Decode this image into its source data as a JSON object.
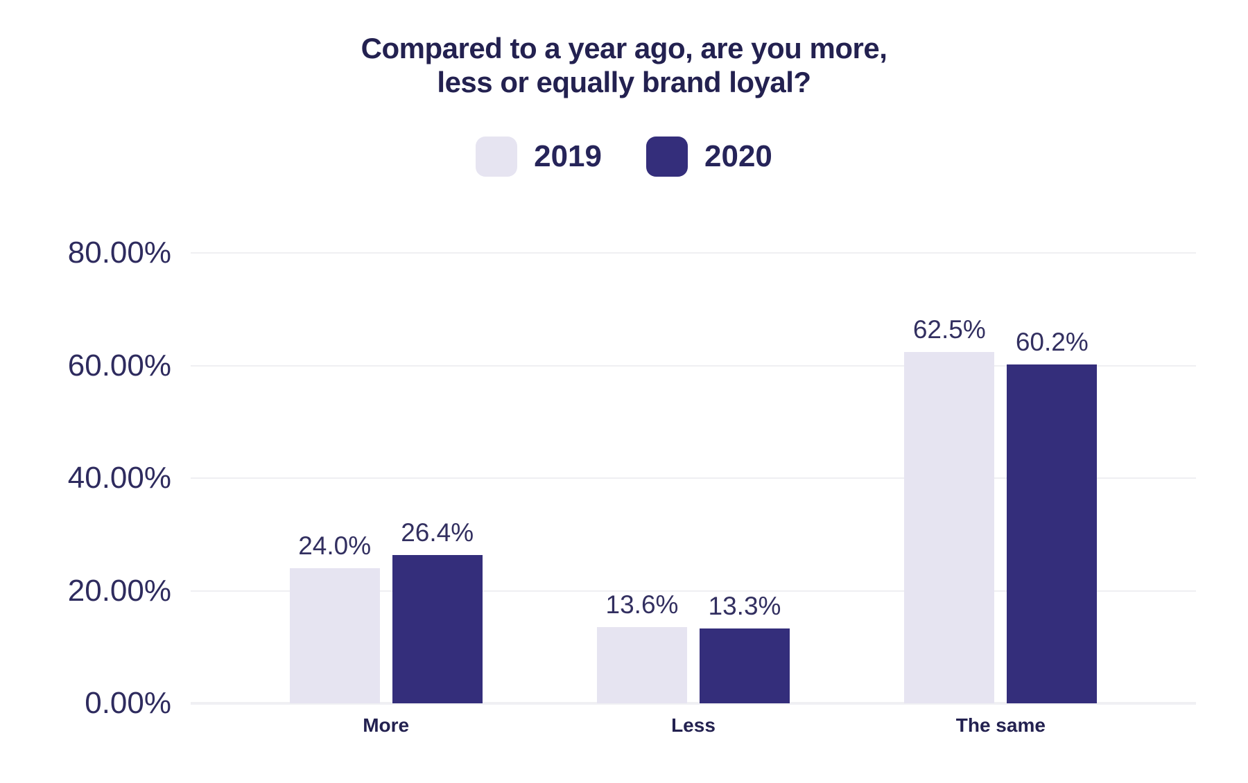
{
  "chart_data": {
    "type": "bar",
    "title_lines": [
      "Compared to a year ago, are you more,",
      "less or equally brand loyal?"
    ],
    "categories": [
      "More",
      "Less",
      "The same"
    ],
    "series": [
      {
        "name": "2019",
        "color": "#E6E4F1",
        "values": [
          24.0,
          13.6,
          62.5
        ],
        "labels": [
          "24.0%",
          "13.6%",
          "62.5%"
        ]
      },
      {
        "name": "2020",
        "color": "#342E7B",
        "values": [
          26.4,
          13.3,
          60.2
        ],
        "labels": [
          "26.4%",
          "13.3%",
          "60.2%"
        ]
      }
    ],
    "y_axis": {
      "max": 80,
      "ticks": [
        {
          "value": 0,
          "label": "0.00%"
        },
        {
          "value": 20,
          "label": "20.00%"
        },
        {
          "value": 40,
          "label": "40.00%"
        },
        {
          "value": 60,
          "label": "60.00%"
        },
        {
          "value": 80,
          "label": "80.00%"
        }
      ]
    },
    "legend": {
      "position": "top",
      "items": [
        "2019",
        "2020"
      ]
    },
    "grid": "horizontal",
    "style": {
      "background": "#FFFFFF",
      "title_color": "#232150",
      "tick_label_color": "#2E2B5E",
      "data_label_color": "#322F60",
      "x_label_color": "#232150",
      "gridline_color": "#EFEFF2",
      "baseline_color": "#F0F0F3"
    }
  }
}
